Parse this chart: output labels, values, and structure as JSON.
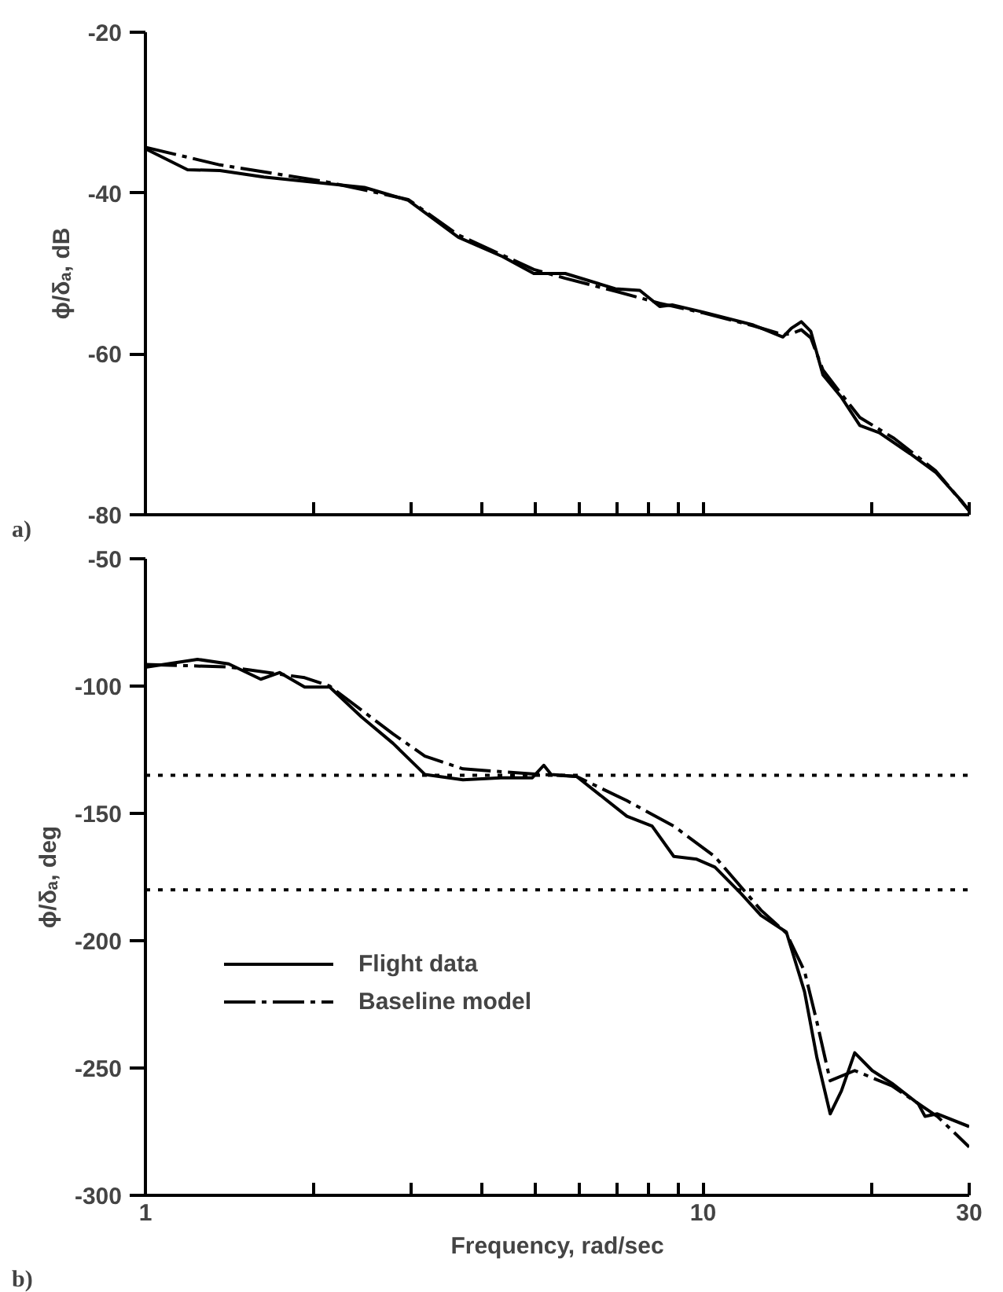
{
  "chart_data": [
    {
      "type": "line",
      "ylabel": "ϕ/δₐ, dB",
      "annotations": [
        "a)"
      ],
      "log": "x",
      "xlim": [
        1,
        30
      ],
      "ylim": [
        -80,
        -20
      ],
      "yticks": [
        -20,
        -40,
        -60,
        -80
      ],
      "xticks": [
        {
          "value": 1,
          "label": null
        },
        {
          "value": 2,
          "label": null
        },
        {
          "value": 3,
          "label": null
        },
        {
          "value": 4,
          "label": null
        },
        {
          "value": 5,
          "label": null
        },
        {
          "value": 6,
          "label": null
        },
        {
          "value": 7,
          "label": null
        },
        {
          "value": 8,
          "label": null
        },
        {
          "value": 9,
          "label": null
        },
        {
          "value": 10,
          "label": null
        },
        {
          "value": 20,
          "label": null
        },
        {
          "value": 30,
          "label": null
        }
      ],
      "tick_labels": "y",
      "grid": false,
      "legend": false,
      "series": [
        {
          "color": "#000000",
          "line_style": "solid",
          "x": [
            1,
            1.19,
            1.36,
            1.63,
            2.11,
            2.47,
            2.96,
            3.64,
            4.37,
            4.97,
            5.66,
            6.96,
            7.7,
            8.36,
            8.8,
            10,
            12.3,
            13.9,
            14.4,
            15,
            15.6,
            16.4,
            17.7,
            19.1,
            20.7,
            23.5,
            26.1,
            29,
            30
          ],
          "values": [
            -34.5,
            -37.1,
            -37.2,
            -38,
            -38.8,
            -39.3,
            -40.9,
            -45.5,
            -47.9,
            -50,
            -50,
            -51.9,
            -52.1,
            -54.1,
            -53.9,
            -54.8,
            -56.4,
            -57.9,
            -56.8,
            -56,
            -57.2,
            -62.6,
            -65.4,
            -68.9,
            -69.8,
            -72.4,
            -74.7,
            -78.2,
            -79.5
          ]
        },
        {
          "color": "#000000",
          "line_style": "dashdot",
          "x": [
            1,
            1.36,
            2.11,
            2.96,
            3.64,
            4.97,
            5.66,
            6.96,
            8.36,
            10,
            12.3,
            13.9,
            14.4,
            15,
            15.6,
            16.4,
            17.7,
            19.1,
            22,
            26.1,
            30
          ],
          "values": [
            -34.3,
            -36.5,
            -38.6,
            -40.8,
            -45.2,
            -49.5,
            -50.6,
            -52.2,
            -53.7,
            -54.9,
            -56.5,
            -57.6,
            -57.5,
            -57,
            -58,
            -62,
            -65,
            -67.9,
            -70.5,
            -74.5,
            -79.5
          ]
        }
      ]
    },
    {
      "type": "line",
      "xlabel": "Frequency, rad/sec",
      "ylabel": "ϕ/δₐ, deg",
      "annotations": [
        "b)"
      ],
      "log": "x",
      "xlim": [
        1,
        30
      ],
      "ylim": [
        -300,
        -50
      ],
      "yticks": [
        -50,
        -100,
        -150,
        -200,
        -250,
        -300
      ],
      "xticks": [
        1,
        {
          "value": 2,
          "label": null
        },
        {
          "value": 3,
          "label": null
        },
        {
          "value": 4,
          "label": null
        },
        {
          "value": 5,
          "label": null
        },
        {
          "value": 6,
          "label": null
        },
        {
          "value": 7,
          "label": null
        },
        {
          "value": 8,
          "label": null
        },
        {
          "value": 9,
          "label": null
        },
        10,
        {
          "value": 20,
          "label": null
        },
        30
      ],
      "grid": false,
      "legend": "left",
      "ref_lines": [
        {
          "axis": "y",
          "value": -135,
          "line_style": "dotted",
          "color": "#000000"
        },
        {
          "axis": "y",
          "value": -180,
          "line_style": "dotted",
          "color": "#000000"
        }
      ],
      "series": [
        {
          "name": "Flight data",
          "color": "#000000",
          "line_style": "solid",
          "x": [
            1,
            1.24,
            1.41,
            1.61,
            1.74,
            1.93,
            2.14,
            2.44,
            2.78,
            3.17,
            3.71,
            4.34,
            4.94,
            5.18,
            5.34,
            5.93,
            6.58,
            7.3,
            8.1,
            8.86,
            9.74,
            10.5,
            11.7,
            12.7,
            14.1,
            15.2,
            16,
            16.9,
            17.7,
            18.7,
            20.1,
            21.8,
            24.3,
            25,
            26.3,
            30
          ],
          "values": [
            -92.6,
            -89.5,
            -91.3,
            -97.3,
            -94.7,
            -100.4,
            -100.4,
            -112.1,
            -122.5,
            -134.7,
            -136.8,
            -136,
            -136,
            -131.1,
            -134.7,
            -135.5,
            -143.3,
            -151.1,
            -155,
            -166.9,
            -168,
            -171.1,
            -181.5,
            -190.1,
            -196.6,
            -220,
            -246,
            -268,
            -259,
            -244,
            -251,
            -256,
            -264,
            -269,
            -268,
            -273
          ]
        },
        {
          "name": "Baseline model",
          "color": "#000000",
          "line_style": "dashdot",
          "x": [
            1,
            1.41,
            1.93,
            2.14,
            2.78,
            3.17,
            3.71,
            4.94,
            5.93,
            7.3,
            8.86,
            10.5,
            12.7,
            14.1,
            15.2,
            16,
            16.9,
            18.7,
            21.8,
            26.3,
            30
          ],
          "values": [
            -91.5,
            -92.5,
            -96.7,
            -100,
            -118.8,
            -127.5,
            -132.5,
            -134.5,
            -135.5,
            -145,
            -155,
            -167,
            -188,
            -197,
            -212,
            -232,
            -255,
            -251,
            -257,
            -269,
            -281
          ]
        }
      ]
    }
  ]
}
